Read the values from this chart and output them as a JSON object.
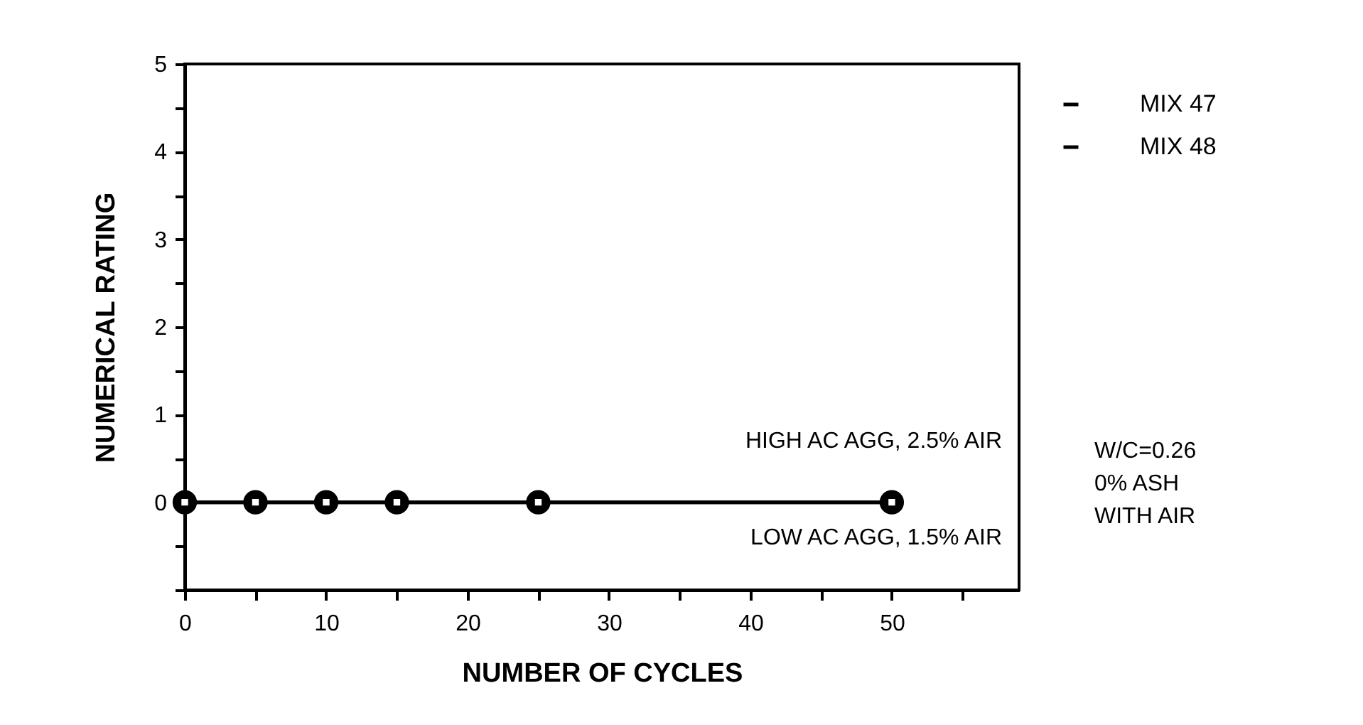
{
  "chart_data": {
    "type": "line",
    "xlabel": "NUMBER OF CYCLES",
    "ylabel": "NUMERICAL RATING",
    "x": [
      0,
      5,
      10,
      15,
      25,
      50
    ],
    "series": [
      {
        "name": "MIX 47",
        "color": "#000000",
        "marker": "circle",
        "values": [
          0,
          0,
          0,
          0,
          0,
          0
        ]
      },
      {
        "name": "MIX 48",
        "color": "#000000",
        "marker": "square",
        "values": [
          0,
          0,
          0,
          0,
          0,
          0
        ]
      }
    ],
    "xlim": [
      0,
      59
    ],
    "ylim": [
      -1,
      5
    ],
    "xticks": [
      0,
      {
        "value": 5,
        "label": null
      },
      10,
      {
        "value": 15,
        "label": null
      },
      20,
      {
        "value": 25,
        "label": null
      },
      30,
      {
        "value": 35,
        "label": null
      },
      40,
      {
        "value": 45,
        "label": null
      },
      50,
      {
        "value": 55,
        "label": null
      }
    ],
    "yticks": [
      {
        "value": -1,
        "label": null
      },
      {
        "value": -0.5,
        "label": null
      },
      0,
      {
        "value": 0.5,
        "label": null
      },
      1,
      {
        "value": 1.5,
        "label": null
      },
      2,
      {
        "value": 2.5,
        "label": null
      },
      3,
      {
        "value": 3.5,
        "label": null
      },
      4,
      {
        "value": 4.5,
        "label": null
      },
      5
    ],
    "annotations": [
      "HIGH AC AGG, 2.5% AIR",
      "LOW AC AGG, 1.5% AIR",
      "W/C=0.26\n0% ASH\nWITH AIR"
    ],
    "legend": "right",
    "grid": false
  }
}
